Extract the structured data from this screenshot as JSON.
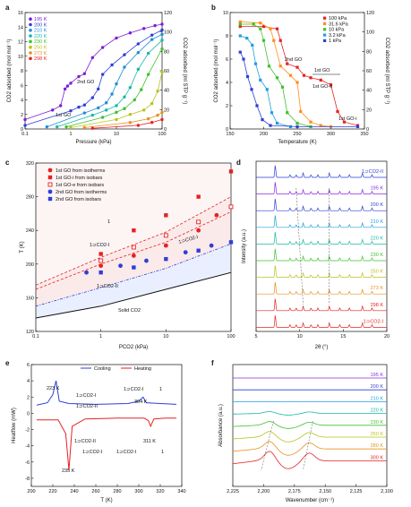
{
  "chart_data": [
    {
      "panel": "a",
      "type": "line",
      "xscale": "log",
      "xlim": [
        0.1,
        100
      ],
      "ylim": [
        0,
        16
      ],
      "ylim_right": [
        0,
        120
      ],
      "xticks": [
        "0.1",
        "1",
        "10",
        "100"
      ],
      "yticks": [
        "0",
        "2",
        "4",
        "6",
        "8",
        "10",
        "12",
        "14",
        "16"
      ],
      "yticks_right": [
        "0",
        "20",
        "40",
        "60",
        "80",
        "100",
        "120"
      ],
      "xlabel": "Pressure (kPa)",
      "ylabel": "CO2 adsorbed (mol mol⁻¹)",
      "ylabel_right": "CO2 adsorbed (ml STP g⁻¹)",
      "annotations": [
        "2nd GO",
        "1st GO"
      ],
      "series": [
        {
          "name": "195 K",
          "color": "#7b1fd6",
          "x": [
            0.1,
            0.4,
            0.6,
            0.75,
            0.85,
            1,
            1.5,
            2,
            3,
            5,
            10,
            20,
            40,
            70,
            100
          ],
          "y": [
            1.3,
            2.6,
            3.2,
            5.5,
            5.9,
            6.3,
            7.2,
            7.6,
            9.8,
            11.2,
            12.5,
            13.2,
            13.8,
            14.2,
            14.4
          ]
        },
        {
          "name": "200 K",
          "color": "#2e3fd6",
          "x": [
            0.1,
            1,
            1.5,
            2,
            3,
            4,
            5,
            8,
            15,
            30,
            60,
            100
          ],
          "y": [
            0.5,
            2.5,
            3.0,
            3.3,
            4.3,
            5.5,
            7.5,
            8.8,
            10.2,
            11.7,
            12.9,
            13.6
          ]
        },
        {
          "name": "210 K",
          "color": "#1f8fd6",
          "x": [
            0.3,
            2,
            4,
            6,
            8,
            10,
            15,
            30,
            60,
            100
          ],
          "y": [
            0.3,
            2.2,
            2.9,
            3.6,
            4.8,
            6.2,
            8.5,
            10.5,
            12.3,
            13.0
          ]
        },
        {
          "name": "220 K",
          "color": "#18b8a8",
          "x": [
            0.5,
            3,
            6,
            10,
            15,
            20,
            30,
            50,
            100
          ],
          "y": [
            0.3,
            1.9,
            2.6,
            3.2,
            4.4,
            5.7,
            8.2,
            10.4,
            12.2
          ]
        },
        {
          "name": "230 K",
          "color": "#3ec12c",
          "x": [
            0.8,
            5,
            10,
            15,
            25,
            35,
            50,
            100
          ],
          "y": [
            0.3,
            1.6,
            2.3,
            2.8,
            4.0,
            5.4,
            7.5,
            11.0
          ]
        },
        {
          "name": "250 K",
          "color": "#b8c41a",
          "x": [
            1,
            10,
            20,
            40,
            60,
            80,
            100
          ],
          "y": [
            0.2,
            1.3,
            2.0,
            2.6,
            3.5,
            5.2,
            7.8
          ]
        },
        {
          "name": "273 K",
          "color": "#e8901c",
          "x": [
            2,
            20,
            50,
            80,
            100
          ],
          "y": [
            0.2,
            0.9,
            1.4,
            1.9,
            2.3
          ]
        },
        {
          "name": "298 K",
          "color": "#e52222",
          "x": [
            3,
            30,
            60,
            100
          ],
          "y": [
            0.1,
            0.5,
            0.9,
            1.3
          ]
        }
      ]
    },
    {
      "panel": "b",
      "type": "line",
      "xlim": [
        150,
        350
      ],
      "ylim": [
        0,
        10
      ],
      "ylim_right": [
        0,
        120
      ],
      "xticks": [
        "150",
        "200",
        "250",
        "300",
        "350"
      ],
      "yticks": [
        "0",
        "2",
        "4",
        "6",
        "8",
        "10"
      ],
      "yticks_right": [
        "0",
        "20",
        "40",
        "60",
        "80",
        "100",
        "120"
      ],
      "xlabel": "Temperature (K)",
      "ylabel": "CO2 adsorbed (mol mol⁻¹)",
      "ylabel_right": "CO2 adsorbed (ml STP g⁻¹)",
      "annotations": [
        "2nd GO",
        "1st GO",
        "1st GO-e",
        "1st GO-i"
      ],
      "series": [
        {
          "name": "100 kPa",
          "color": "#e52222",
          "x": [
            165,
            200,
            220,
            225,
            235,
            250,
            260,
            270,
            285,
            300,
            310,
            320,
            340
          ],
          "y": [
            8.8,
            8.8,
            8.6,
            7.6,
            5.6,
            5.3,
            4.6,
            4.4,
            4.2,
            3.8,
            1.5,
            0.6,
            0.3
          ]
        },
        {
          "name": "31.6 kPa",
          "color": "#ff8c1a",
          "x": [
            165,
            195,
            210,
            215,
            225,
            240,
            250,
            255,
            270,
            285,
            300
          ],
          "y": [
            9.2,
            9.1,
            8.6,
            7.6,
            5.4,
            4.6,
            4.0,
            1.5,
            0.6,
            0.3,
            0.2
          ]
        },
        {
          "name": "10 kPa",
          "color": "#3ec12c",
          "x": [
            165,
            185,
            195,
            200,
            208,
            220,
            228,
            235,
            250,
            270
          ],
          "y": [
            9.0,
            9.0,
            8.6,
            7.6,
            5.4,
            4.4,
            3.6,
            1.4,
            0.5,
            0.2
          ]
        },
        {
          "name": "3.2 kPa",
          "color": "#1f9fe0",
          "x": [
            165,
            175,
            183,
            188,
            195,
            205,
            212,
            220,
            240
          ],
          "y": [
            8.0,
            7.8,
            7.2,
            5.6,
            4.2,
            3.4,
            1.4,
            0.5,
            0.2
          ]
        },
        {
          "name": "1 kPa",
          "color": "#2e3fd6",
          "x": [
            165,
            170,
            176,
            182,
            190,
            198,
            210,
            250,
            340
          ],
          "y": [
            6.6,
            6.0,
            4.5,
            3.4,
            2.0,
            0.8,
            0.3,
            0.2,
            0.2
          ]
        }
      ]
    },
    {
      "panel": "c",
      "type": "scatter",
      "xscale": "log",
      "xlim": [
        0.1,
        100
      ],
      "ylim": [
        120,
        320
      ],
      "xticks": [
        "0.1",
        "1",
        "10",
        "100"
      ],
      "yticks": [
        "120",
        "160",
        "200",
        "240",
        "280",
        "320"
      ],
      "xlabel": "PCO2 (kPa)",
      "ylabel": "T (K)",
      "regions": [
        "1",
        "1⊃CO2-I",
        "1⊃CO2-II",
        "Solid CO2"
      ],
      "series": [
        {
          "name": "1st GO from isotherms",
          "color": "#e52222",
          "marker": "circle",
          "x": [
            1,
            3.2,
            10,
            31.6,
            60
          ],
          "y": [
            198,
            210,
            222,
            240,
            258
          ]
        },
        {
          "name": "1st GO-i from isobars",
          "color": "#e52222",
          "marker": "square",
          "x": [
            1,
            3.2,
            10,
            31.6,
            100
          ],
          "y": [
            212,
            240,
            258,
            280,
            310
          ]
        },
        {
          "name": "1st GO-e from isobars",
          "color": "#e52222",
          "marker": "square-open",
          "x": [
            1,
            3.2,
            10,
            31.6,
            100
          ],
          "y": [
            204,
            220,
            234,
            250,
            268
          ]
        },
        {
          "name": "2nd GO from isotherms",
          "color": "#2e3fd6",
          "marker": "circle",
          "x": [
            0.6,
            2,
            5,
            20,
            50
          ],
          "y": [
            190,
            198,
            204,
            214,
            222
          ]
        },
        {
          "name": "2nd GO from isobars",
          "color": "#2e3fd6",
          "marker": "square",
          "x": [
            1,
            3.2,
            10,
            31.6,
            100
          ],
          "y": [
            190,
            196,
            206,
            216,
            226
          ]
        }
      ],
      "boundaries": [
        {
          "name": "solid",
          "color": "#111111",
          "x": [
            0.1,
            1,
            10,
            100
          ],
          "y": [
            136,
            150,
            170,
            190
          ]
        }
      ]
    },
    {
      "panel": "d",
      "type": "line",
      "xlim": [
        5,
        20
      ],
      "xticks": [
        "5",
        "10",
        "15",
        "20"
      ],
      "xlabel": "2θ (°)",
      "ylabel": "Intensity (a.u.)",
      "series": [
        {
          "name": "1⊃CO2-II",
          "color": "#2e3fd6"
        },
        {
          "name": "195 K",
          "color": "#8a2be2"
        },
        {
          "name": "200 K",
          "color": "#2e3fd6"
        },
        {
          "name": "210 K",
          "color": "#1f9fe0"
        },
        {
          "name": "220 K",
          "color": "#18b8a8"
        },
        {
          "name": "230 K",
          "color": "#3ec12c"
        },
        {
          "name": "250 K",
          "color": "#b8c41a"
        },
        {
          "name": "273 K",
          "color": "#e8901c"
        },
        {
          "name": "298 K",
          "color": "#e52222"
        },
        {
          "name": "1⊃CO2-I",
          "color": "#e52222"
        }
      ],
      "peaks_2theta": [
        7.2,
        8.9,
        9.6,
        10.4,
        11.3,
        12.1,
        13.4,
        14.6,
        15.7,
        17.2,
        18.3
      ]
    },
    {
      "panel": "e",
      "type": "line",
      "xlim": [
        200,
        340
      ],
      "ylim": [
        -9,
        6
      ],
      "xticks": [
        "200",
        "220",
        "240",
        "260",
        "280",
        "300",
        "320",
        "340"
      ],
      "yticks": [
        "-8",
        "-6",
        "-4",
        "-2",
        "0",
        "2",
        "4",
        "6"
      ],
      "xlabel": "T (K)",
      "ylabel": "Heatflow (mW)",
      "legend": [
        "Cooling",
        "Heating"
      ],
      "annotations": [
        "223 K",
        "304 K",
        "235 K",
        "311 K",
        "1⊃CO2-I",
        "1⊃CO2-II",
        "1"
      ],
      "series": [
        {
          "name": "Cooling",
          "color": "#2e3fd6",
          "x": [
            205,
            215,
            220,
            223,
            226,
            235,
            260,
            290,
            300,
            304,
            307,
            320,
            335
          ],
          "y": [
            1.0,
            1.3,
            2.3,
            4.0,
            1.5,
            1.2,
            1.1,
            1.2,
            1.5,
            2.0,
            1.3,
            1.2,
            1.1
          ]
        },
        {
          "name": "Heating",
          "color": "#e52222",
          "x": [
            205,
            225,
            232,
            235,
            238,
            250,
            280,
            305,
            309,
            311,
            314,
            325,
            335
          ],
          "y": [
            -0.8,
            -0.8,
            -2.5,
            -7.0,
            -1.6,
            -0.7,
            -0.6,
            -0.6,
            -0.9,
            -1.6,
            -0.7,
            -0.6,
            -0.6
          ]
        }
      ]
    },
    {
      "panel": "f",
      "type": "line",
      "xlim": [
        2225,
        2100
      ],
      "xticks": [
        "2,225",
        "2,200",
        "2,175",
        "2,150",
        "2,125",
        "2,100"
      ],
      "xlabel": "Wavenumber (cm⁻¹)",
      "ylabel": "Absorbance (a.u.)",
      "series": [
        {
          "name": "195 K",
          "color": "#8a2be2"
        },
        {
          "name": "200 K",
          "color": "#2e3fd6"
        },
        {
          "name": "210 K",
          "color": "#1f9fe0"
        },
        {
          "name": "220 K",
          "color": "#18b8a8"
        },
        {
          "name": "230 K",
          "color": "#3ec12c"
        },
        {
          "name": "250 K",
          "color": "#b8c41a"
        },
        {
          "name": "280 K",
          "color": "#e8901c"
        },
        {
          "name": "300 K",
          "color": "#e52222"
        }
      ]
    }
  ]
}
